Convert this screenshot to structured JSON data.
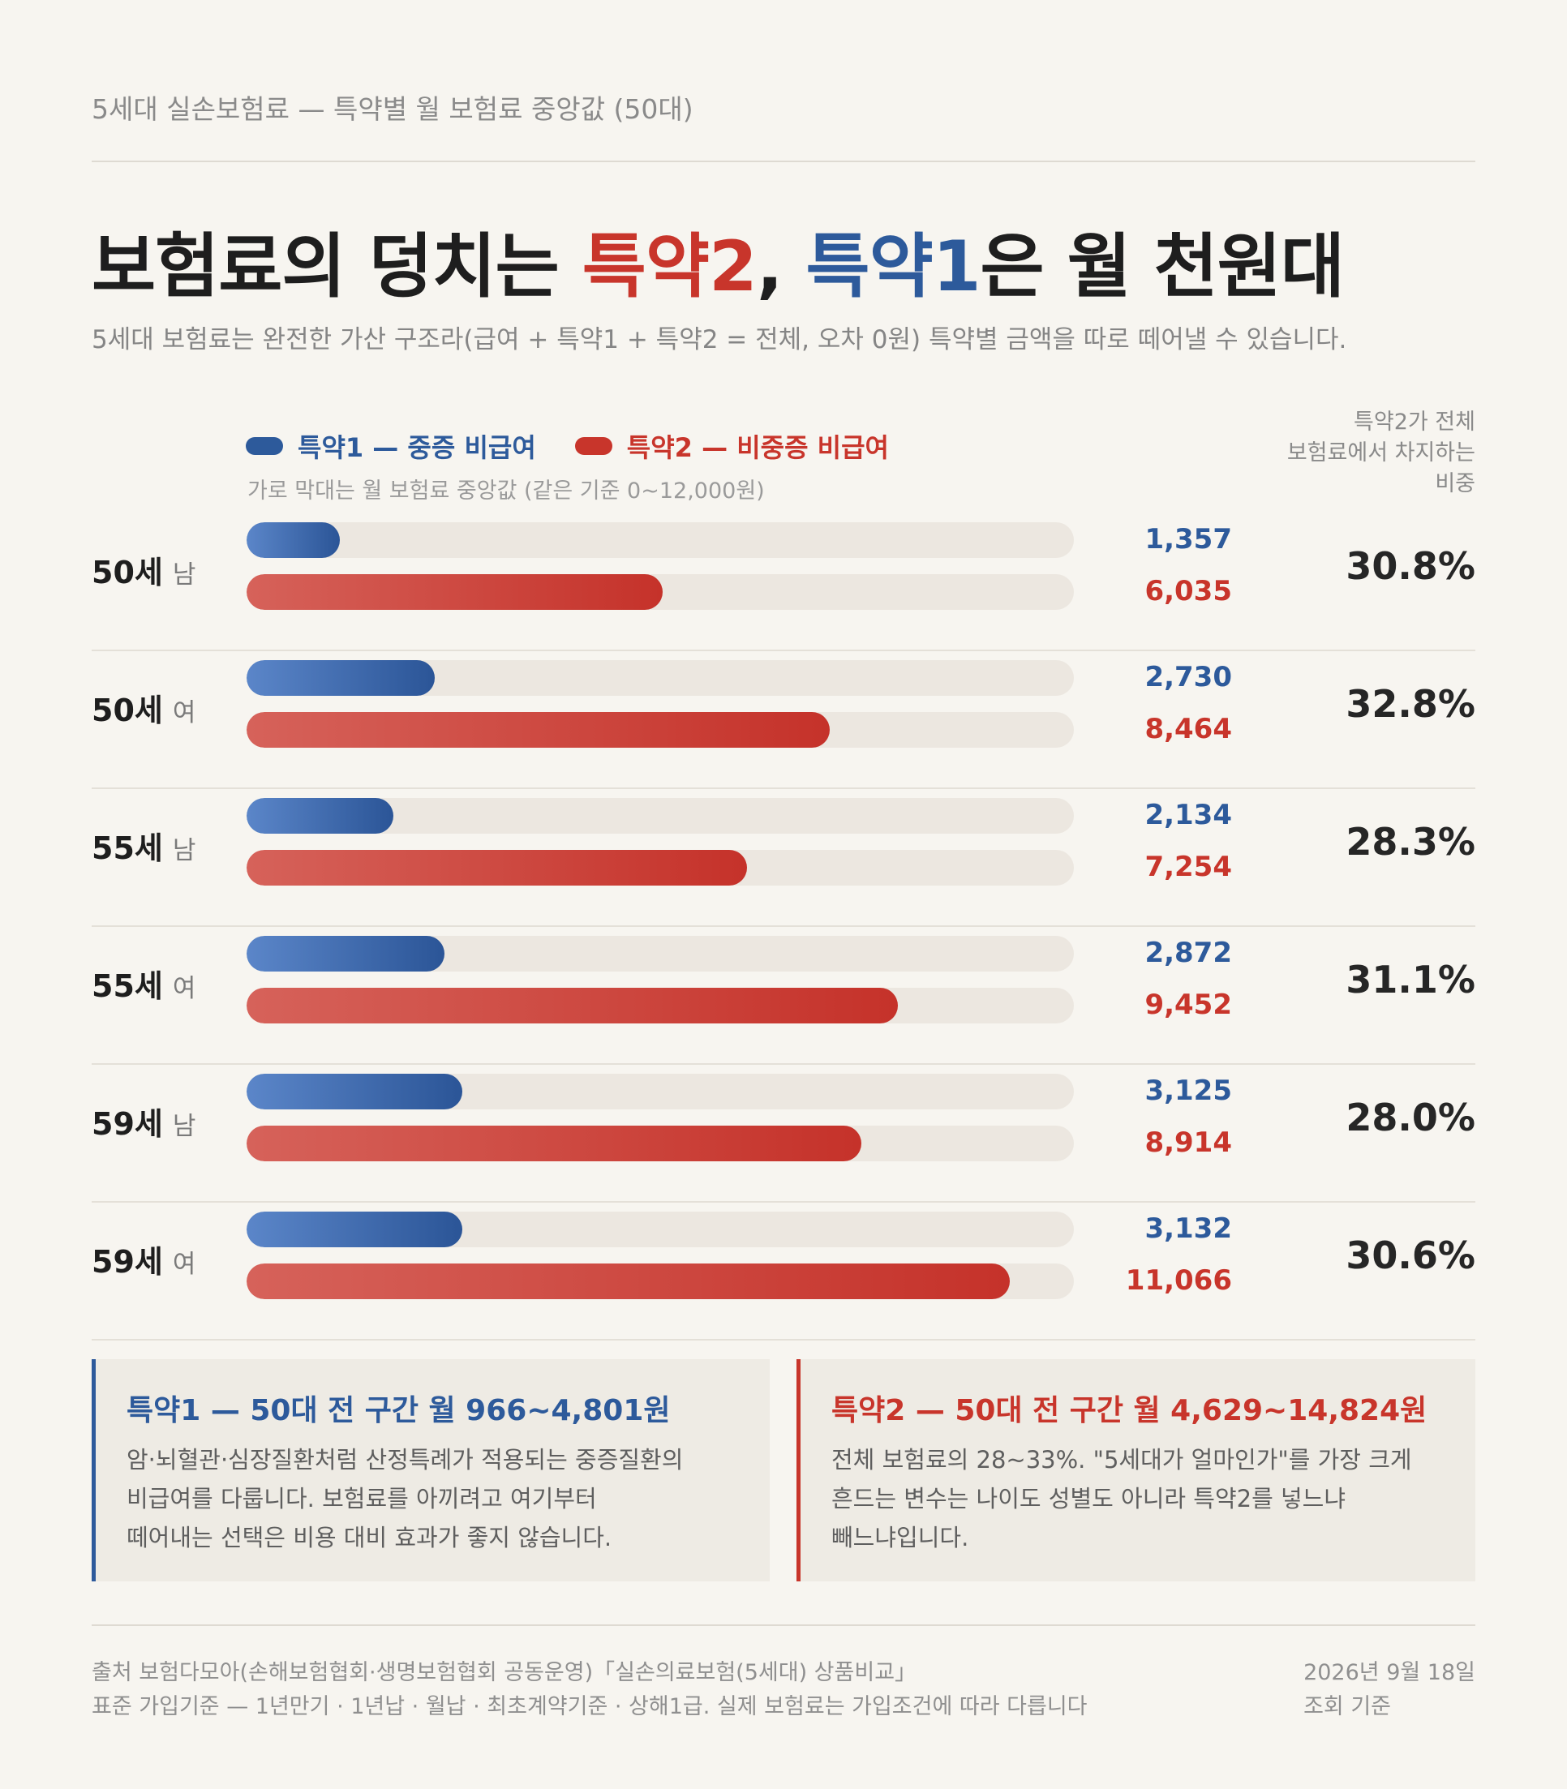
{
  "eyebrow": "5세대 실손보험료 — 특약별 월 보험료 중앙값 (50대)",
  "headline": {
    "part1": "보험료의 덩치는 ",
    "red": "특약2",
    "part2": ", ",
    "blue": "특약1",
    "part3": "은 월 천원대"
  },
  "subtitle": "5세대 보험료는 완전한 가산 구조라(급여 + 특약1 + 특약2 = 전체, 오차 0원) 특약별 금액을 따로 떼어낼 수 있습니다.",
  "legend": {
    "s1": "특약1 — 중증 비급여",
    "s2": "특약2 — 비중증 비급여",
    "note": "가로 막대는 월 보험료 중앙값 (같은 기준 0~12,000원)"
  },
  "share_header": [
    "특약2가 전체",
    "보험료에서 차지하는",
    "비중"
  ],
  "colors": {
    "rider1": "#2d5a9b",
    "rider2": "#c8352b",
    "track": "#ece7e0",
    "background": "#f7f5f0"
  },
  "chart_data": {
    "type": "bar",
    "orientation": "horizontal",
    "xlim": [
      0,
      12000
    ],
    "categories": [
      "50세 남",
      "50세 여",
      "55세 남",
      "55세 여",
      "59세 남",
      "59세 여"
    ],
    "series": [
      {
        "name": "특약1 — 중증 비급여",
        "values": [
          1357,
          2730,
          2134,
          2872,
          3125,
          3132
        ]
      },
      {
        "name": "특약2 — 비중증 비급여",
        "values": [
          6035,
          8464,
          7254,
          9452,
          8914,
          11066
        ]
      }
    ],
    "rows": [
      {
        "age": "50세",
        "sex": "남",
        "v1": 1357,
        "v2": 6035,
        "v1_label": "1,357",
        "v2_label": "6,035",
        "share": "30.8%"
      },
      {
        "age": "50세",
        "sex": "여",
        "v1": 2730,
        "v2": 8464,
        "v1_label": "2,730",
        "v2_label": "8,464",
        "share": "32.8%"
      },
      {
        "age": "55세",
        "sex": "남",
        "v1": 2134,
        "v2": 7254,
        "v1_label": "2,134",
        "v2_label": "7,254",
        "share": "28.3%"
      },
      {
        "age": "55세",
        "sex": "여",
        "v1": 2872,
        "v2": 9452,
        "v1_label": "2,872",
        "v2_label": "9,452",
        "share": "31.1%"
      },
      {
        "age": "59세",
        "sex": "남",
        "v1": 3125,
        "v2": 8914,
        "v1_label": "3,125",
        "v2_label": "8,914",
        "share": "28.0%"
      },
      {
        "age": "59세",
        "sex": "여",
        "v1": 3132,
        "v2": 11066,
        "v1_label": "3,132",
        "v2_label": "11,066",
        "share": "30.6%"
      }
    ]
  },
  "cards": {
    "c1": {
      "title": "특약1 — 50대 전 구간 월 966~4,801원",
      "lines": [
        "암·뇌혈관·심장질환처럼 산정특례가 적용되는 중증질환의",
        "비급여를 다룹니다. 보험료를 아끼려고 여기부터",
        "떼어내는 선택은 비용 대비 효과가 좋지 않습니다."
      ]
    },
    "c2": {
      "title": "특약2 — 50대 전 구간 월 4,629~14,824원",
      "lines": [
        "전체 보험료의 28~33%. \"5세대가 얼마인가\"를 가장 크게",
        "흔드는 변수는 나이도 성별도 아니라 특약2를 넣느냐",
        "빼느냐입니다."
      ]
    }
  },
  "footer": {
    "line1": "출처 보험다모아(손해보험협회·생명보험협회 공동운영)「실손의료보험(5세대) 상품비교」",
    "line2": "표준 가입기준 — 1년만기 · 1년납 · 월납 · 최초계약기준 · 상해1급. 실제 보험료는 가입조건에 따라 다릅니다",
    "date": "2026년 9월 18일",
    "date_note": "조회 기준"
  }
}
